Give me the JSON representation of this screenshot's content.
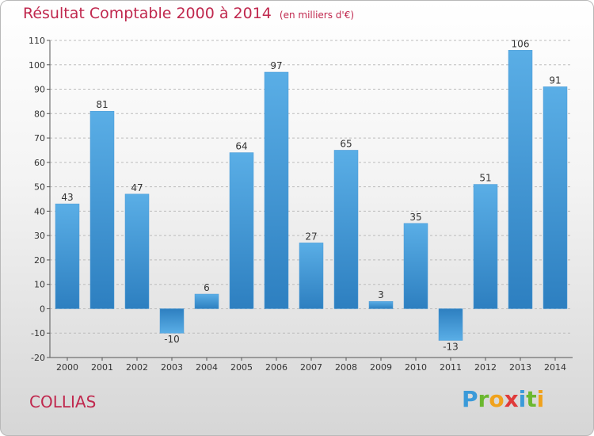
{
  "title": "Résultat Comptable 2000 à 2014",
  "subtitle": "(en milliers d'€)",
  "commune": "COLLIAS",
  "logo": {
    "letters": [
      "P",
      "r",
      "o",
      "x",
      "i",
      "t",
      "i"
    ],
    "colors": [
      "#3a9ad9",
      "#6bb82f",
      "#f0a21c",
      "#e03a3a",
      "#3a9ad9",
      "#6bb82f",
      "#f0a21c"
    ]
  },
  "colors": {
    "bar_top": "#5aaee6",
    "bar_bottom": "#2d7fc0",
    "title": "#c0284e"
  },
  "chart_data": {
    "type": "bar",
    "categories": [
      "2000",
      "2001",
      "2002",
      "2003",
      "2004",
      "2005",
      "2006",
      "2007",
      "2008",
      "2009",
      "2010",
      "2011",
      "2012",
      "2013",
      "2014"
    ],
    "values": [
      43,
      81,
      47,
      -10,
      6,
      64,
      97,
      27,
      65,
      3,
      35,
      -13,
      51,
      106,
      91
    ],
    "yticks": [
      -20,
      -10,
      0,
      10,
      20,
      30,
      40,
      50,
      60,
      70,
      80,
      90,
      100,
      110
    ],
    "ylim": [
      -20,
      110
    ],
    "grid": "horizontal dashed"
  }
}
